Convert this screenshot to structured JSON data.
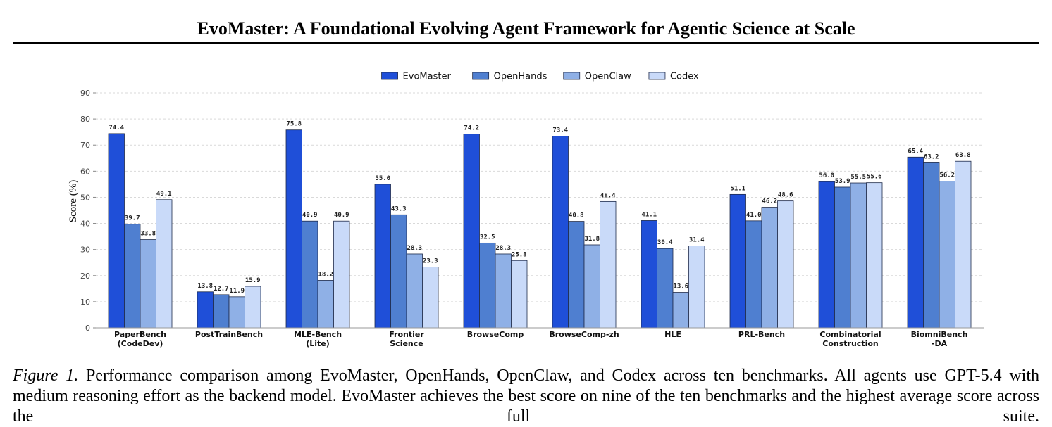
{
  "paper_title": "EvoMaster: A Foundational Evolving Agent Framework for Agentic Science at Scale",
  "caption": {
    "label": "Figure 1.",
    "text": " Performance comparison among EvoMaster, OpenHands, OpenClaw, and Codex across ten benchmarks. All agents use GPT-5.4 with medium reasoning effort as the backend model. EvoMaster achieves the best score on nine of the ten benchmarks and the highest average score across the full suite."
  },
  "chart_data": {
    "type": "bar",
    "title": "",
    "xlabel": "",
    "ylabel": "Score (%)",
    "ylim": [
      0,
      90
    ],
    "yticks": [
      0,
      10,
      20,
      30,
      40,
      50,
      60,
      70,
      80,
      90
    ],
    "grid": true,
    "legend_position": "top-center",
    "categories": [
      [
        "PaperBench",
        "(CodeDev)"
      ],
      [
        "PostTrainBench"
      ],
      [
        "MLE-Bench",
        "(Lite)"
      ],
      [
        "Frontier",
        "Science"
      ],
      [
        "BrowseComp"
      ],
      [
        "BrowseComp-zh"
      ],
      [
        "HLE"
      ],
      [
        "PRL-Bench"
      ],
      [
        "Combinatorial",
        "Construction"
      ],
      [
        "BiomniBench",
        "-DA"
      ]
    ],
    "series": [
      {
        "name": "EvoMaster",
        "color": "#1f4fd8",
        "values": [
          74.4,
          13.8,
          75.8,
          55.0,
          74.2,
          73.4,
          41.1,
          51.1,
          56.0,
          65.4
        ]
      },
      {
        "name": "OpenHands",
        "color": "#4f7fd0",
        "values": [
          39.7,
          12.7,
          40.9,
          43.3,
          32.5,
          40.8,
          30.4,
          41.0,
          53.9,
          63.2
        ]
      },
      {
        "name": "OpenClaw",
        "color": "#8fb0e6",
        "values": [
          33.8,
          11.9,
          18.2,
          28.3,
          28.3,
          31.8,
          13.6,
          46.2,
          55.5,
          56.2
        ]
      },
      {
        "name": "Codex",
        "color": "#c9daf9",
        "values": [
          49.1,
          15.9,
          40.9,
          23.3,
          25.8,
          48.4,
          31.4,
          48.6,
          55.6,
          63.8
        ]
      }
    ]
  }
}
